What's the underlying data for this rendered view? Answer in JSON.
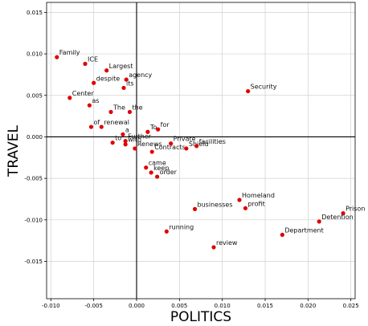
{
  "chart_data": {
    "type": "scatter",
    "title": "",
    "xlabel": "POLITICS",
    "ylabel": "TRAVEL",
    "xlim": [
      -0.0105,
      0.0255
    ],
    "ylim": [
      -0.0195,
      0.0162
    ],
    "xticks": [
      -0.01,
      -0.005,
      0.0,
      0.005,
      0.01,
      0.015,
      0.02,
      0.025
    ],
    "xtick_labels": [
      "-0.010",
      "-0.005",
      "0.000",
      "0.005",
      "0.010",
      "0.015",
      "0.020",
      "0.025"
    ],
    "yticks": [
      0.015,
      0.01,
      0.005,
      0.0,
      -0.005,
      -0.01,
      -0.015
    ],
    "ytick_labels": [
      "0.015",
      "0.010",
      "0.005",
      "0.000",
      "-0.005",
      "-0.010",
      "-0.015"
    ],
    "grid": true,
    "zero_lines": true,
    "point_color": "#e00000",
    "points": [
      {
        "label": "Family",
        "x": -0.0093,
        "y": 0.0096
      },
      {
        "label": "ICE",
        "x": -0.006,
        "y": 0.0088
      },
      {
        "label": "Largest",
        "x": -0.0035,
        "y": 0.008
      },
      {
        "label": "despite",
        "x": -0.005,
        "y": 0.0065
      },
      {
        "label": "agency",
        "x": -0.0012,
        "y": 0.0069
      },
      {
        "label": "its",
        "x": -0.0015,
        "y": 0.0059
      },
      {
        "label": "Center",
        "x": -0.0078,
        "y": 0.0047
      },
      {
        "label": "as",
        "x": -0.0055,
        "y": 0.0038
      },
      {
        "label": "The",
        "x": -0.003,
        "y": 0.003
      },
      {
        "label": "the",
        "x": -0.0008,
        "y": 0.003
      },
      {
        "label": "Security",
        "x": 0.013,
        "y": 0.0055
      },
      {
        "label": "of",
        "x": -0.0053,
        "y": 0.0012
      },
      {
        "label": "renewal",
        "x": -0.0041,
        "y": 0.0012
      },
      {
        "label": "a",
        "x": -0.0016,
        "y": 0.0003
      },
      {
        "label": "To",
        "x": 0.0013,
        "y": 0.0006
      },
      {
        "label": "for",
        "x": 0.0025,
        "y": 0.0009
      },
      {
        "label": "to",
        "x": -0.0028,
        "y": -0.0007
      },
      {
        "label": "Further",
        "x": -0.0013,
        "y": -0.0005
      },
      {
        "label": "with",
        "x": -0.0013,
        "y": -0.0009
      },
      {
        "label": "Renews",
        "x": -0.0002,
        "y": -0.0014
      },
      {
        "label": "Contracts",
        "x": 0.0018,
        "y": -0.0018
      },
      {
        "label": "Private",
        "x": 0.004,
        "y": -0.0008
      },
      {
        "label": "Shield",
        "x": 0.0058,
        "y": -0.0014
      },
      {
        "label": "facilities",
        "x": 0.007,
        "y": -0.0011
      },
      {
        "label": "came",
        "x": 0.0011,
        "y": -0.0037
      },
      {
        "label": "keep",
        "x": 0.0017,
        "y": -0.0043
      },
      {
        "label": "order",
        "x": 0.0024,
        "y": -0.0048
      },
      {
        "label": "Homeland",
        "x": 0.012,
        "y": -0.0076
      },
      {
        "label": "profit",
        "x": 0.0127,
        "y": -0.0086
      },
      {
        "label": "businesses",
        "x": 0.0068,
        "y": -0.0087
      },
      {
        "label": "Prison",
        "x": 0.0241,
        "y": -0.0092
      },
      {
        "label": "Detention",
        "x": 0.0213,
        "y": -0.0102
      },
      {
        "label": "running",
        "x": 0.0035,
        "y": -0.0114
      },
      {
        "label": "Department",
        "x": 0.017,
        "y": -0.0118
      },
      {
        "label": "review",
        "x": 0.009,
        "y": -0.0133
      }
    ]
  }
}
